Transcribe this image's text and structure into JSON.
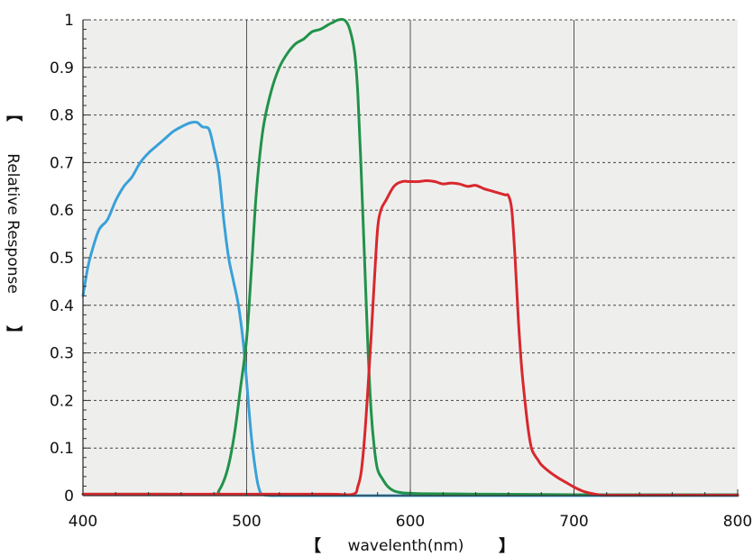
{
  "chart_data": {
    "type": "line",
    "title": "",
    "xlabel": "wavelenth(nm)",
    "ylabel": "Relative Response",
    "bracket_open": "【",
    "bracket_close": "】",
    "xlim": [
      400,
      800
    ],
    "ylim": [
      0,
      1
    ],
    "xticks": [
      400,
      500,
      600,
      700,
      800
    ],
    "yticks": [
      0,
      0.1,
      0.2,
      0.3,
      0.4,
      0.5,
      0.6,
      0.7,
      0.8,
      0.9,
      1
    ],
    "xtick_labels": [
      "400",
      "500",
      "600",
      "700",
      "800"
    ],
    "ytick_labels": [
      "0",
      "0.1",
      "0.2",
      "0.3",
      "0.4",
      "0.5",
      "0.6",
      "0.7",
      "0.8",
      "0.9",
      "1"
    ],
    "grid": "dashed horizontal, solid vertical",
    "background_color": "#eeefed",
    "series": [
      {
        "color": "#3aa0d8",
        "x": [
          400,
          403,
          406,
          410,
          415,
          420,
          425,
          430,
          435,
          440,
          445,
          450,
          455,
          460,
          465,
          468,
          470,
          473,
          477,
          480,
          483,
          486,
          489,
          492,
          495,
          498,
          500,
          503,
          506,
          508,
          510,
          515,
          520,
          540,
          560,
          580,
          600,
          650,
          700,
          750,
          800
        ],
        "y": [
          0.42,
          0.48,
          0.52,
          0.56,
          0.58,
          0.62,
          0.65,
          0.67,
          0.7,
          0.72,
          0.735,
          0.75,
          0.765,
          0.775,
          0.783,
          0.785,
          0.784,
          0.775,
          0.77,
          0.73,
          0.68,
          0.58,
          0.5,
          0.45,
          0.4,
          0.32,
          0.24,
          0.12,
          0.04,
          0.01,
          0.002,
          0,
          0,
          0,
          0,
          0,
          0,
          0,
          0,
          0,
          0
        ]
      },
      {
        "color": "#22924a",
        "x": [
          400,
          450,
          480,
          483,
          487,
          490,
          493,
          496,
          500,
          503,
          506,
          510,
          515,
          520,
          525,
          530,
          535,
          540,
          545,
          550,
          553,
          556,
          560,
          563,
          566,
          568,
          570,
          572,
          574,
          576,
          578,
          580,
          583,
          586,
          590,
          595,
          600,
          610,
          650,
          700,
          750,
          800
        ],
        "y": [
          0.003,
          0.003,
          0.003,
          0.01,
          0.04,
          0.08,
          0.14,
          0.22,
          0.33,
          0.48,
          0.64,
          0.77,
          0.85,
          0.9,
          0.93,
          0.95,
          0.96,
          0.975,
          0.98,
          0.99,
          0.995,
          1.0,
          0.999,
          0.98,
          0.93,
          0.84,
          0.68,
          0.5,
          0.32,
          0.18,
          0.1,
          0.055,
          0.035,
          0.02,
          0.01,
          0.006,
          0.005,
          0.004,
          0.003,
          0.002,
          0.002,
          0.002
        ]
      },
      {
        "color": "#d8282e",
        "x": [
          400,
          450,
          500,
          550,
          565,
          568,
          570,
          572,
          574,
          576,
          578,
          580,
          582,
          585,
          590,
          595,
          600,
          605,
          610,
          615,
          620,
          625,
          630,
          635,
          640,
          645,
          650,
          655,
          658,
          660,
          662,
          664,
          666,
          668,
          670,
          672,
          674,
          676,
          678,
          680,
          685,
          690,
          695,
          700,
          705,
          710,
          715,
          720,
          750,
          800
        ],
        "y": [
          0.003,
          0.003,
          0.003,
          0.003,
          0.003,
          0.02,
          0.05,
          0.12,
          0.22,
          0.33,
          0.45,
          0.56,
          0.6,
          0.62,
          0.65,
          0.66,
          0.66,
          0.66,
          0.662,
          0.66,
          0.655,
          0.657,
          0.655,
          0.65,
          0.652,
          0.645,
          0.64,
          0.635,
          0.632,
          0.63,
          0.6,
          0.5,
          0.37,
          0.27,
          0.2,
          0.14,
          0.1,
          0.085,
          0.075,
          0.065,
          0.05,
          0.038,
          0.028,
          0.018,
          0.01,
          0.005,
          0.002,
          0.001,
          0.001,
          0.001
        ]
      }
    ]
  }
}
